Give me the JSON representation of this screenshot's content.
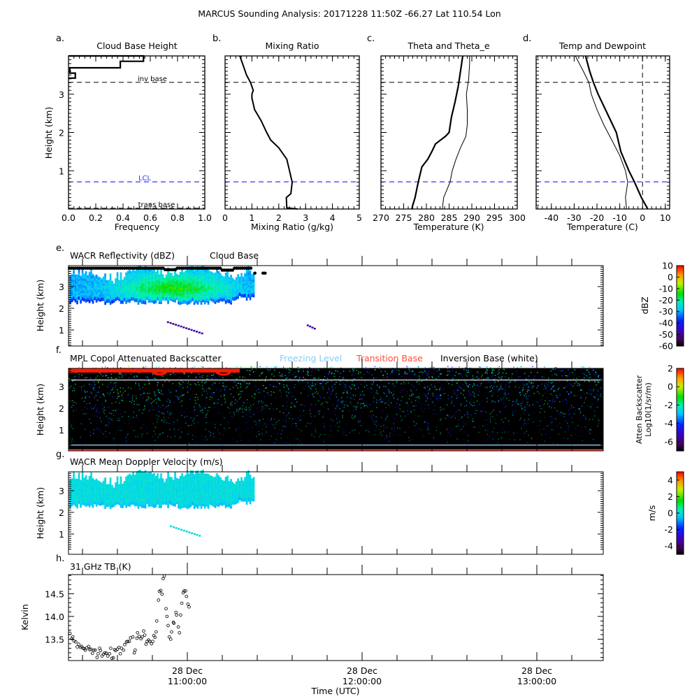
{
  "title": "MARCUS Sounding Analysis: 20171228 11:50Z   -66.27 Lat  110.54 Lon",
  "colors": {
    "lcl": "#3333ff",
    "freezing": "#87cefa",
    "transition": "#ff4c3b",
    "inversion": "#ffffff"
  },
  "chart_data": [
    {
      "id": "a",
      "type": "bar",
      "panel_letter": "a.",
      "title": "Cloud Base Height",
      "xlabel": "Frequency",
      "ylabel": "Height (km)",
      "xlim": [
        0,
        1
      ],
      "ylim": [
        0,
        4
      ],
      "xticks": [
        "0.0",
        "0.2",
        "0.4",
        "0.6",
        "0.8",
        "1.0"
      ],
      "yticks": [
        "1",
        "2",
        "3"
      ],
      "bins": [
        {
          "bottom": 3.86,
          "top": 4.0,
          "freq": 0.55
        },
        {
          "bottom": 3.69,
          "top": 3.86,
          "freq": 0.38
        },
        {
          "bottom": 3.55,
          "top": 3.69,
          "freq": 0.01
        },
        {
          "bottom": 3.42,
          "top": 3.55,
          "freq": 0.05
        }
      ],
      "annotations": {
        "inv_base": "inv base",
        "lcl": "LCL",
        "trans_base": "trans base"
      },
      "levels_km": {
        "inv_base": 3.31,
        "lcl": 0.71,
        "trans_base": 0.02
      }
    },
    {
      "id": "b",
      "type": "line",
      "panel_letter": "b.",
      "title": "Mixing Ratio",
      "xlabel": "Mixing Ratio (g/kg)",
      "xlim": [
        0,
        5
      ],
      "ylim": [
        0,
        4
      ],
      "xticks": [
        "0",
        "1",
        "2",
        "3",
        "4",
        "5"
      ],
      "series": [
        {
          "name": "mixing ratio",
          "points": [
            [
              2.7,
              0.0
            ],
            [
              2.3,
              0.03
            ],
            [
              2.28,
              0.3
            ],
            [
              2.45,
              0.4
            ],
            [
              2.5,
              0.7
            ],
            [
              2.4,
              1.0
            ],
            [
              2.3,
              1.3
            ],
            [
              2.0,
              1.6
            ],
            [
              1.7,
              1.8
            ],
            [
              1.55,
              2.0
            ],
            [
              1.35,
              2.3
            ],
            [
              1.1,
              2.6
            ],
            [
              1.0,
              2.9
            ],
            [
              1.0,
              3.0
            ],
            [
              1.05,
              3.1
            ],
            [
              0.95,
              3.3
            ],
            [
              0.8,
              3.5
            ],
            [
              0.7,
              3.7
            ],
            [
              0.55,
              4.0
            ]
          ]
        }
      ]
    },
    {
      "id": "c",
      "type": "line",
      "panel_letter": "c.",
      "title": "Theta and Theta_e",
      "xlabel": "Temperature (K)",
      "xlim": [
        270,
        300
      ],
      "ylim": [
        0,
        4
      ],
      "xticks": [
        "270",
        "275",
        "280",
        "285",
        "290",
        "295",
        "300"
      ],
      "series": [
        {
          "name": "theta",
          "width": 2.2,
          "points": [
            [
              276.8,
              0
            ],
            [
              277,
              0.1
            ],
            [
              277.5,
              0.3
            ],
            [
              278.2,
              0.7
            ],
            [
              279,
              1.1
            ],
            [
              280.3,
              1.3
            ],
            [
              281.2,
              1.5
            ],
            [
              282,
              1.7
            ],
            [
              284.2,
              1.9
            ],
            [
              285,
              2.0
            ],
            [
              285.5,
              2.4
            ],
            [
              286.3,
              2.8
            ],
            [
              287,
              3.2
            ],
            [
              287.5,
              3.6
            ],
            [
              288,
              4.0
            ]
          ]
        },
        {
          "name": "theta_e",
          "width": 1,
          "points": [
            [
              283.5,
              0
            ],
            [
              283.8,
              0.3
            ],
            [
              285.2,
              0.7
            ],
            [
              285.7,
              1.0
            ],
            [
              286.5,
              1.3
            ],
            [
              287.5,
              1.6
            ],
            [
              288.7,
              1.9
            ],
            [
              289,
              2.2
            ],
            [
              289,
              2.6
            ],
            [
              288.8,
              3.0
            ],
            [
              289.3,
              3.4
            ],
            [
              289.5,
              3.8
            ],
            [
              289.5,
              4.0
            ]
          ]
        }
      ]
    },
    {
      "id": "d",
      "type": "line",
      "panel_letter": "d.",
      "title": "Temp and Dewpoint",
      "xlabel": "Temperature (C)",
      "xlim": [
        -46.7,
        11.9
      ],
      "ylim": [
        0,
        4
      ],
      "xticks": [
        "-40",
        "-30",
        "-20",
        "-10",
        "0",
        "10"
      ],
      "series": [
        {
          "name": "temperature",
          "width": 2.2,
          "points": [
            [
              2.3,
              0
            ],
            [
              -0.5,
              0.3
            ],
            [
              -3.5,
              0.7
            ],
            [
              -6,
              1.0
            ],
            [
              -9.5,
              1.5
            ],
            [
              -11.5,
              2.0
            ],
            [
              -15.5,
              2.5
            ],
            [
              -19.5,
              3.0
            ],
            [
              -21.5,
              3.3
            ],
            [
              -23.2,
              3.6
            ],
            [
              -25,
              4.0
            ]
          ]
        },
        {
          "name": "dewpoint",
          "width": 1,
          "points": [
            [
              -7,
              0
            ],
            [
              -7.5,
              0.3
            ],
            [
              -6.5,
              0.7
            ],
            [
              -7.5,
              1.0
            ],
            [
              -10,
              1.4
            ],
            [
              -13.5,
              1.8
            ],
            [
              -17,
              2.2
            ],
            [
              -20,
              2.6
            ],
            [
              -22.5,
              3.0
            ],
            [
              -23.5,
              3.3
            ],
            [
              -26,
              3.6
            ],
            [
              -29.5,
              4.0
            ]
          ]
        }
      ]
    },
    {
      "id": "e",
      "type": "heatmap",
      "panel_letter": "e.",
      "title": "WACR Reflectivity (dBZ)",
      "legend2": "Cloud Base",
      "ylabel": "Height (km)",
      "yticks": [
        "1",
        "2",
        "3"
      ],
      "cbar_label": "dBZ",
      "cbar_range": [
        -60,
        10
      ],
      "cbar_ticks": [
        "10",
        "0",
        "-10",
        "-20",
        "-30",
        "-40",
        "-50",
        "-60"
      ],
      "cloud_top_km": 3.9,
      "cloud_base_km": 2.1,
      "echo_end_min": 82
    },
    {
      "id": "f",
      "type": "heatmap",
      "panel_letter": "f.",
      "title": "MPL Copol Attenuated Backscatter",
      "legend": [
        "Freezing Level",
        "Transition Base",
        "Inversion Base (white)"
      ],
      "ylabel": "Height (km)",
      "yticks": [
        "1",
        "2",
        "3"
      ],
      "cbar_label": "Atten Backscatter",
      "cbar_label2": "Log10(1/sr/m)",
      "cbar_range": [
        -7,
        2
      ],
      "cbar_ticks": [
        "2",
        "0",
        "-2",
        "-4",
        "-6"
      ],
      "inversion_km": 3.3,
      "freezing_km": 0.3
    },
    {
      "id": "g",
      "type": "heatmap",
      "panel_letter": "g.",
      "title": "WACR Mean Doppler Velocity (m/s)",
      "ylabel": "Height (km)",
      "yticks": [
        "1",
        "2",
        "3"
      ],
      "cbar_label": "m/s",
      "cbar_range": [
        -5,
        5
      ],
      "cbar_ticks": [
        "4",
        "2",
        "0",
        "-2",
        "-4"
      ]
    },
    {
      "id": "h",
      "type": "scatter",
      "panel_letter": "h.",
      "title": "31 GHz TB (K)",
      "ylabel": "Kelvin",
      "xlabel": "Time (UTC)",
      "ylim": [
        13.03,
        14.92
      ],
      "yticks": [
        "13.5",
        "14.0",
        "14.5"
      ],
      "x_units": "minutes after 10:00 UTC",
      "xlim": [
        19.2,
        202.6
      ],
      "xticks": [
        {
          "date": "28 Dec",
          "time": "11:00:00"
        },
        {
          "date": "28 Dec",
          "time": "12:00:00"
        },
        {
          "date": "28 Dec",
          "time": "13:00:00"
        }
      ],
      "points": [
        [
          19.7,
          13.63
        ],
        [
          20.3,
          13.51
        ],
        [
          20.7,
          13.55
        ],
        [
          21.1,
          13.46
        ],
        [
          21.7,
          13.44
        ],
        [
          22.2,
          13.33
        ],
        [
          22.7,
          13.39
        ],
        [
          23.3,
          13.32
        ],
        [
          23.7,
          13.34
        ],
        [
          24.2,
          13.3
        ],
        [
          24.6,
          13.29
        ],
        [
          25.0,
          13.26
        ],
        [
          25.5,
          13.31
        ],
        [
          26.1,
          13.34
        ],
        [
          26.5,
          13.27
        ],
        [
          26.9,
          13.28
        ],
        [
          27.4,
          13.19
        ],
        [
          27.9,
          13.26
        ],
        [
          28.4,
          13.26
        ],
        [
          29.0,
          13.1
        ],
        [
          29.4,
          13.18
        ],
        [
          29.9,
          13.3
        ],
        [
          30.2,
          13.25
        ],
        [
          30.7,
          13.13
        ],
        [
          31.2,
          13.17
        ],
        [
          31.7,
          13.2
        ],
        [
          32.2,
          13.19
        ],
        [
          32.7,
          13.13
        ],
        [
          33.3,
          13.18
        ],
        [
          33.7,
          13.3
        ],
        [
          34.1,
          13.08
        ],
        [
          34.6,
          13.09
        ],
        [
          35.0,
          13.27
        ],
        [
          35.4,
          13.25
        ],
        [
          36.0,
          13.28
        ],
        [
          36.5,
          13.32
        ],
        [
          37.0,
          13.18
        ],
        [
          37.4,
          13.3
        ],
        [
          38.1,
          13.26
        ],
        [
          38.5,
          13.38
        ],
        [
          39.1,
          13.44
        ],
        [
          39.5,
          13.45
        ],
        [
          40.1,
          13.45
        ],
        [
          40.5,
          13.53
        ],
        [
          41.3,
          13.55
        ],
        [
          41.8,
          13.2
        ],
        [
          42.1,
          13.26
        ],
        [
          42.7,
          13.52
        ],
        [
          42.9,
          13.64
        ],
        [
          43.5,
          13.56
        ],
        [
          44.1,
          13.51
        ],
        [
          44.5,
          13.55
        ],
        [
          45.0,
          13.68
        ],
        [
          45.4,
          13.59
        ],
        [
          45.8,
          13.39
        ],
        [
          46.2,
          13.45
        ],
        [
          46.7,
          13.48
        ],
        [
          47.1,
          13.45
        ],
        [
          47.7,
          13.4
        ],
        [
          48.1,
          13.45
        ],
        [
          48.5,
          13.58
        ],
        [
          48.9,
          13.54
        ],
        [
          49.3,
          13.66
        ],
        [
          49.5,
          13.9
        ],
        [
          50.1,
          14.36
        ],
        [
          50.4,
          14.55
        ],
        [
          50.9,
          14.57
        ],
        [
          51.3,
          14.49
        ],
        [
          51.7,
          14.83
        ],
        [
          52.1,
          14.89
        ],
        [
          52.7,
          14.17
        ],
        [
          53.0,
          14.0
        ],
        [
          53.4,
          13.8
        ],
        [
          53.8,
          13.55
        ],
        [
          54.3,
          13.5
        ],
        [
          54.6,
          13.66
        ],
        [
          55.2,
          13.87
        ],
        [
          55.4,
          13.85
        ],
        [
          56.1,
          14.09
        ],
        [
          56.3,
          14.03
        ],
        [
          56.9,
          13.77
        ],
        [
          57.3,
          13.64
        ],
        [
          57.7,
          14.03
        ],
        [
          58.1,
          14.29
        ],
        [
          58.6,
          14.52
        ],
        [
          58.9,
          14.56
        ],
        [
          59.4,
          14.56
        ],
        [
          59.7,
          14.44
        ],
        [
          60.2,
          14.27
        ],
        [
          60.6,
          14.21
        ]
      ]
    }
  ]
}
